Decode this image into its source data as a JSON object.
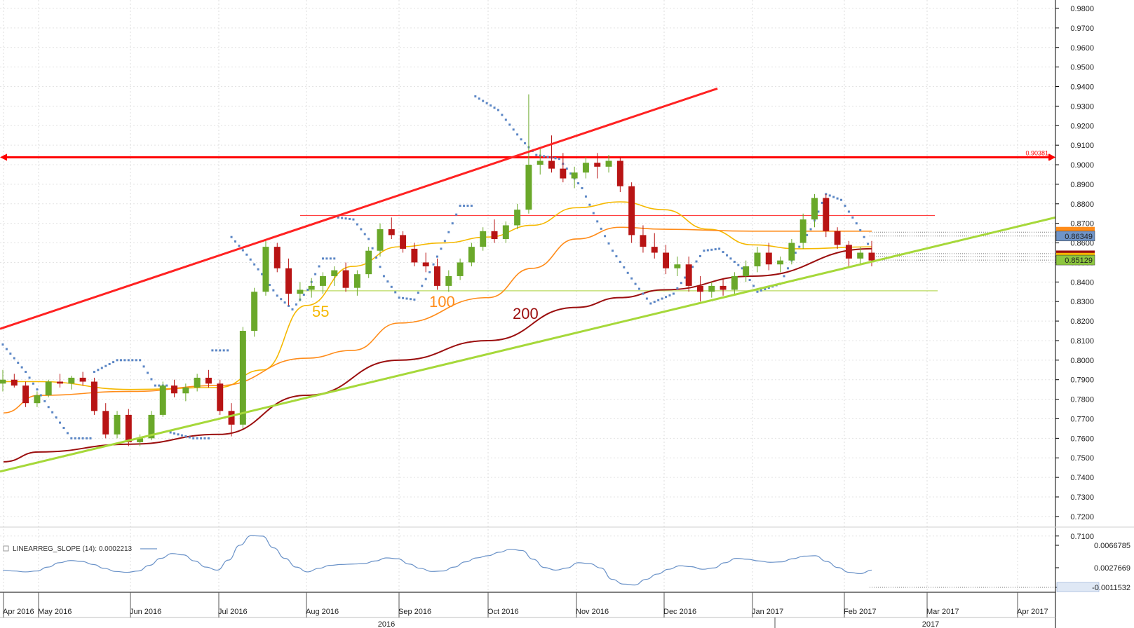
{
  "chart_data": {
    "type": "candlestick",
    "price_axis": {
      "ylim": [
        0.7085,
        0.9825
      ],
      "ticks": [
        "0.9800",
        "0.9700",
        "0.9600",
        "0.9500",
        "0.9400",
        "0.9300",
        "0.9200",
        "0.9100",
        "0.9000",
        "0.8900",
        "0.8800",
        "0.8700",
        "0.8600",
        "0.8500",
        "0.8400",
        "0.8300",
        "0.8200",
        "0.8100",
        "0.8000",
        "0.7900",
        "0.7800",
        "0.7700",
        "0.7600",
        "0.7500",
        "0.7400",
        "0.7300",
        "0.7200",
        "0.7100"
      ],
      "price_badges": [
        {
          "text": "0.86349",
          "color": "#6f94c8"
        },
        {
          "text": "0.85129",
          "color": "#8dc63f"
        }
      ]
    },
    "time_axis": {
      "months": [
        "Apr 2016",
        "May 2016",
        "Jun 2016",
        "Jul 2016",
        "Aug 2016",
        "Sep 2016",
        "Oct 2016",
        "Nov 2016",
        "Dec 2016",
        "Jan 2017",
        "Feb 2017",
        "Mar 2017",
        "Apr 2017"
      ],
      "years": [
        "2016",
        "2017"
      ]
    },
    "horizontal_level": {
      "value": 0.90381,
      "label": "0.90381",
      "color": "#ff0000"
    },
    "resistance_line": {
      "value": 0.874,
      "color": "#ff4040",
      "from": "Aug 2016",
      "to": "Mar 2017"
    },
    "support_line": {
      "value": 0.8355,
      "color": "#c5e17a",
      "from": "Aug 2016",
      "to": "Mar 2017"
    },
    "channel_upper": {
      "color": "#ff2222",
      "points": [
        [
          "Apr 2016",
          0.816
        ],
        [
          "Nov 2016",
          0.939
        ]
      ]
    },
    "channel_lower": {
      "color": "#a6d83a",
      "points": [
        [
          "Apr 2016",
          0.743
        ],
        [
          "Apr 2017",
          0.877
        ]
      ]
    },
    "ma_labels": [
      {
        "text": "55",
        "color": "#f5b800"
      },
      {
        "text": "100",
        "color": "#ff8c1a"
      },
      {
        "text": "200",
        "color": "#9b0f0f"
      }
    ],
    "moving_averages": [
      {
        "period": 55,
        "color": "#f5b800",
        "values": [
          [
            "Apr 2016",
            0.789
          ],
          [
            "May 2016",
            0.789
          ],
          [
            "Jun 2016",
            0.785
          ],
          [
            "Jul 2016",
            0.786
          ],
          [
            "Jul 2016+",
            0.795
          ],
          [
            "Aug 2016",
            0.828
          ],
          [
            "Aug 2016+",
            0.848
          ],
          [
            "Sep 2016",
            0.858
          ],
          [
            "Sep 2016+",
            0.86
          ],
          [
            "Oct 2016",
            0.863
          ],
          [
            "Oct 2016+",
            0.869
          ],
          [
            "Nov 2016",
            0.878
          ],
          [
            "Nov 2016+",
            0.881
          ],
          [
            "Dec 2016",
            0.877
          ],
          [
            "Dec 2016+",
            0.867
          ],
          [
            "Jan 2017",
            0.859
          ],
          [
            "Jan 2017+",
            0.857
          ],
          [
            "Feb 2017",
            0.858
          ]
        ]
      },
      {
        "period": 100,
        "color": "#ff8c1a",
        "values": [
          [
            "Apr 2016",
            0.773
          ],
          [
            "May 2016",
            0.782
          ],
          [
            "Jun 2016",
            0.784
          ],
          [
            "Jul 2016",
            0.787
          ],
          [
            "Aug 2016",
            0.801
          ],
          [
            "Aug 2016+",
            0.805
          ],
          [
            "Sep 2016",
            0.819
          ],
          [
            "Oct 2016",
            0.832
          ],
          [
            "Oct 2016+",
            0.847
          ],
          [
            "Nov 2016",
            0.862
          ],
          [
            "Nov 2016+",
            0.868
          ],
          [
            "Dec 2016",
            0.867
          ],
          [
            "Jan 2017",
            0.866
          ],
          [
            "Feb 2017",
            0.866
          ]
        ]
      },
      {
        "period": 200,
        "color": "#9b0f0f",
        "values": [
          [
            "Apr 2016",
            0.748
          ],
          [
            "May 2016",
            0.753
          ],
          [
            "Jun 2016",
            0.757
          ],
          [
            "Jul 2016",
            0.762
          ],
          [
            "Aug 2016",
            0.782
          ],
          [
            "Sep 2016",
            0.8
          ],
          [
            "Oct 2016",
            0.81
          ],
          [
            "Nov 2016",
            0.827
          ],
          [
            "Nov 2016+",
            0.832
          ],
          [
            "Dec 2016",
            0.836
          ],
          [
            "Jan 2017",
            0.843
          ],
          [
            "Feb 2017",
            0.857
          ]
        ]
      }
    ],
    "candles": [
      [
        0.788,
        0.795,
        0.784,
        0.79
      ],
      [
        0.79,
        0.793,
        0.786,
        0.787
      ],
      [
        0.787,
        0.789,
        0.776,
        0.778
      ],
      [
        0.778,
        0.784,
        0.776,
        0.782
      ],
      [
        0.782,
        0.79,
        0.781,
        0.789
      ],
      [
        0.789,
        0.793,
        0.786,
        0.788
      ],
      [
        0.788,
        0.792,
        0.785,
        0.791
      ],
      [
        0.791,
        0.794,
        0.787,
        0.789
      ],
      [
        0.789,
        0.791,
        0.772,
        0.774
      ],
      [
        0.774,
        0.778,
        0.76,
        0.762
      ],
      [
        0.762,
        0.774,
        0.76,
        0.772
      ],
      [
        0.772,
        0.775,
        0.756,
        0.758
      ],
      [
        0.758,
        0.762,
        0.756,
        0.76
      ],
      [
        0.76,
        0.774,
        0.759,
        0.772
      ],
      [
        0.772,
        0.789,
        0.771,
        0.787
      ],
      [
        0.787,
        0.79,
        0.781,
        0.783
      ],
      [
        0.783,
        0.788,
        0.779,
        0.786
      ],
      [
        0.786,
        0.793,
        0.784,
        0.791
      ],
      [
        0.791,
        0.795,
        0.786,
        0.788
      ],
      [
        0.788,
        0.79,
        0.772,
        0.774
      ],
      [
        0.774,
        0.778,
        0.761,
        0.767
      ],
      [
        0.767,
        0.817,
        0.765,
        0.815
      ],
      [
        0.815,
        0.837,
        0.812,
        0.835
      ],
      [
        0.835,
        0.861,
        0.833,
        0.858
      ],
      [
        0.858,
        0.86,
        0.845,
        0.847
      ],
      [
        0.847,
        0.852,
        0.828,
        0.834
      ],
      [
        0.834,
        0.84,
        0.83,
        0.836
      ],
      [
        0.836,
        0.842,
        0.832,
        0.838
      ],
      [
        0.838,
        0.845,
        0.834,
        0.843
      ],
      [
        0.843,
        0.848,
        0.838,
        0.846
      ],
      [
        0.846,
        0.85,
        0.835,
        0.837
      ],
      [
        0.837,
        0.846,
        0.833,
        0.844
      ],
      [
        0.844,
        0.858,
        0.842,
        0.856
      ],
      [
        0.856,
        0.87,
        0.853,
        0.867
      ],
      [
        0.867,
        0.873,
        0.862,
        0.864
      ],
      [
        0.864,
        0.866,
        0.855,
        0.857
      ],
      [
        0.857,
        0.86,
        0.848,
        0.85
      ],
      [
        0.85,
        0.855,
        0.845,
        0.848
      ],
      [
        0.848,
        0.852,
        0.836,
        0.838
      ],
      [
        0.838,
        0.846,
        0.835,
        0.843
      ],
      [
        0.843,
        0.852,
        0.841,
        0.85
      ],
      [
        0.85,
        0.86,
        0.848,
        0.858
      ],
      [
        0.858,
        0.868,
        0.856,
        0.866
      ],
      [
        0.866,
        0.872,
        0.86,
        0.862
      ],
      [
        0.862,
        0.871,
        0.86,
        0.869
      ],
      [
        0.869,
        0.88,
        0.867,
        0.877
      ],
      [
        0.877,
        0.936,
        0.875,
        0.9
      ],
      [
        0.9,
        0.909,
        0.895,
        0.902
      ],
      [
        0.902,
        0.915,
        0.896,
        0.898
      ],
      [
        0.898,
        0.906,
        0.891,
        0.893
      ],
      [
        0.893,
        0.899,
        0.888,
        0.896
      ],
      [
        0.896,
        0.904,
        0.893,
        0.901
      ],
      [
        0.901,
        0.906,
        0.893,
        0.899
      ],
      [
        0.899,
        0.905,
        0.896,
        0.902
      ],
      [
        0.902,
        0.904,
        0.886,
        0.889
      ],
      [
        0.889,
        0.891,
        0.86,
        0.864
      ],
      [
        0.864,
        0.869,
        0.855,
        0.858
      ],
      [
        0.858,
        0.865,
        0.852,
        0.855
      ],
      [
        0.855,
        0.859,
        0.844,
        0.847
      ],
      [
        0.847,
        0.853,
        0.843,
        0.849
      ],
      [
        0.849,
        0.853,
        0.835,
        0.838
      ],
      [
        0.838,
        0.843,
        0.83,
        0.835
      ],
      [
        0.835,
        0.84,
        0.832,
        0.838
      ],
      [
        0.838,
        0.842,
        0.833,
        0.836
      ],
      [
        0.836,
        0.845,
        0.834,
        0.843
      ],
      [
        0.843,
        0.851,
        0.84,
        0.848
      ],
      [
        0.848,
        0.858,
        0.845,
        0.855
      ],
      [
        0.855,
        0.86,
        0.846,
        0.849
      ],
      [
        0.849,
        0.853,
        0.845,
        0.851
      ],
      [
        0.851,
        0.862,
        0.849,
        0.86
      ],
      [
        0.86,
        0.875,
        0.857,
        0.872
      ],
      [
        0.872,
        0.885,
        0.868,
        0.883
      ],
      [
        0.883,
        0.885,
        0.863,
        0.866
      ],
      [
        0.866,
        0.868,
        0.857,
        0.859
      ],
      [
        0.859,
        0.861,
        0.848,
        0.852
      ],
      [
        0.852,
        0.858,
        0.849,
        0.855
      ],
      [
        0.855,
        0.861,
        0.848,
        0.851
      ]
    ],
    "psar": [
      [
        0,
        0.808
      ],
      [
        6,
        0.794
      ],
      [
        12,
        0.776
      ],
      [
        18,
        0.76
      ],
      [
        24,
        0.794
      ],
      [
        30,
        0.8
      ],
      [
        36,
        0.8
      ],
      [
        40,
        0.787
      ],
      [
        44,
        0.763
      ],
      [
        50,
        0.76
      ],
      [
        55,
        0.805
      ],
      [
        60,
        0.863
      ],
      [
        64,
        0.854
      ],
      [
        68,
        0.844
      ],
      [
        72,
        0.833
      ],
      [
        76,
        0.826
      ],
      [
        80,
        0.836
      ],
      [
        84,
        0.852
      ],
      [
        88,
        0.873
      ],
      [
        92,
        0.872
      ],
      [
        96,
        0.862
      ],
      [
        100,
        0.843
      ],
      [
        104,
        0.832
      ],
      [
        108,
        0.831
      ],
      [
        112,
        0.845
      ],
      [
        116,
        0.861
      ],
      [
        120,
        0.879
      ],
      [
        124,
        0.935
      ],
      [
        130,
        0.928
      ],
      [
        136,
        0.913
      ],
      [
        140,
        0.905
      ],
      [
        146,
        0.903
      ],
      [
        152,
        0.888
      ],
      [
        156,
        0.871
      ],
      [
        160,
        0.856
      ],
      [
        166,
        0.839
      ],
      [
        170,
        0.829
      ],
      [
        176,
        0.834
      ],
      [
        180,
        0.845
      ],
      [
        184,
        0.856
      ],
      [
        188,
        0.857
      ],
      [
        194,
        0.847
      ],
      [
        198,
        0.835
      ],
      [
        204,
        0.839
      ],
      [
        208,
        0.855
      ],
      [
        212,
        0.867
      ],
      [
        216,
        0.885
      ],
      [
        220,
        0.882
      ],
      [
        224,
        0.87
      ],
      [
        228,
        0.856
      ]
    ],
    "indicator": {
      "label": "LINEARREG_SLOPE (14): 0.0002213",
      "color": "#6a92c8",
      "ticks": [
        "0.0066785",
        "0.0027669",
        "-0.0011532"
      ],
      "ylim": [
        -0.004,
        0.009
      ],
      "values": [
        0.0001,
        -0.0001,
        -0.0003,
        -0.0001,
        0.0008,
        0.0018,
        0.0023,
        0.0021,
        0.0014,
        0.0005,
        -0.0002,
        -0.0004,
        -0.0001,
        0.0012,
        0.0028,
        0.0039,
        0.0036,
        0.0022,
        0.0008,
        0.0001,
        0.0024,
        0.0058,
        0.008,
        0.0079,
        0.0052,
        0.0028,
        0.0008,
        -0.0003,
        0.0005,
        0.0012,
        0.0014,
        0.0015,
        0.0016,
        0.0022,
        0.0029,
        0.0027,
        0.0015,
        0.0005,
        -0.0002,
        -0.0001,
        0.0008,
        0.002,
        0.0029,
        0.0034,
        0.0042,
        0.0049,
        0.0046,
        0.0026,
        0.0007,
        0.0001,
        0.0006,
        0.0018,
        0.0016,
        0.0006,
        -0.002,
        -0.0031,
        -0.0033,
        -0.002,
        -0.0008,
        0.0003,
        0.0011,
        0.0009,
        0.0003,
        0.0006,
        0.0018,
        0.0028,
        0.0026,
        0.0022,
        0.0019,
        0.002,
        0.0027,
        0.0033,
        0.0034,
        0.0021,
        0.0007,
        -0.0004,
        -0.0007,
        0.0001
      ]
    }
  }
}
